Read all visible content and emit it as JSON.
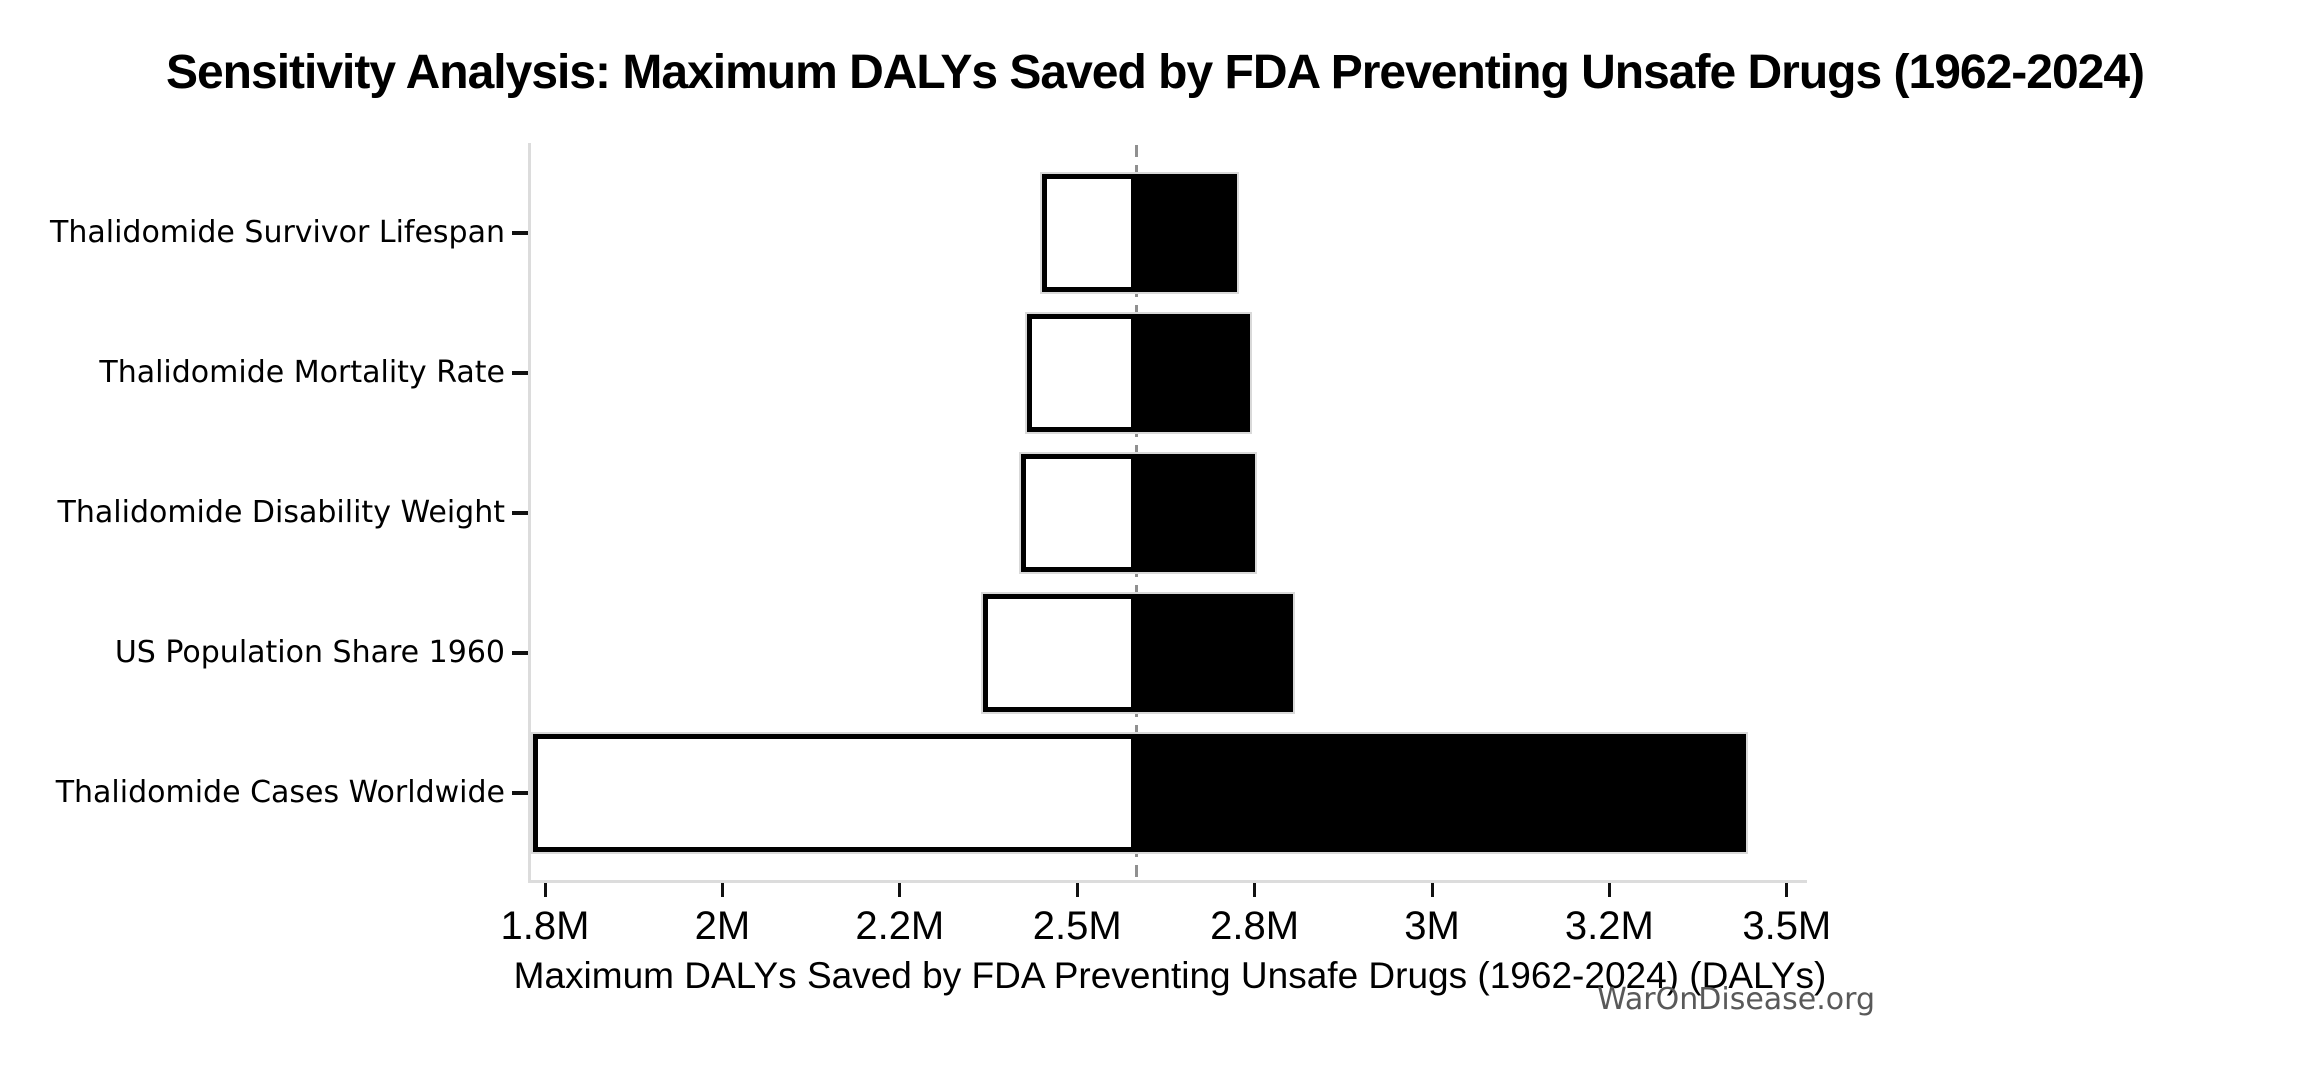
{
  "watermark": "WarOnDisease.org",
  "chart_data": {
    "type": "bar",
    "variant": "tornado-sensitivity",
    "orientation": "horizontal",
    "title": "Sensitivity Analysis: Maximum DALYs Saved by FDA Preventing Unsafe Drugs (1962-2024)",
    "xlabel": "Maximum DALYs Saved by FDA Preventing Unsafe Drugs (1962-2024) (DALYs)",
    "baseline_value": 2600000,
    "x_ticks": [
      {
        "label": "1.8M",
        "value": 1800000
      },
      {
        "label": "2M",
        "value": 2000000
      },
      {
        "label": "2.2M",
        "value": 2200000
      },
      {
        "label": "2.5M",
        "value": 2500000
      },
      {
        "label": "2.8M",
        "value": 2800000
      },
      {
        "label": "3M",
        "value": 3000000
      },
      {
        "label": "3.2M",
        "value": 3200000
      },
      {
        "label": "3.5M",
        "value": 3500000
      }
    ],
    "x_ticks_evenly_spaced": true,
    "grid": false,
    "legend": null,
    "rows": [
      {
        "label": "Thalidomide Survivor Lifespan",
        "low": 2440000,
        "high": 2770000
      },
      {
        "label": "Thalidomide Mortality Rate",
        "low": 2415000,
        "high": 2793000
      },
      {
        "label": "Thalidomide Disability Weight",
        "low": 2405000,
        "high": 2800000
      },
      {
        "label": "US Population Share 1960",
        "low": 2340000,
        "high": 2843000
      },
      {
        "label": "Thalidomide Cases Worldwide",
        "low": 1786000,
        "high": 3431000
      }
    ],
    "colors": {
      "low_bar_fill": "#ffffff",
      "low_bar_edge": "#000000",
      "high_bar_fill": "#000000",
      "bar_outline": "#d9d9d9",
      "baseline_line": "#909090",
      "axis_spine": "#dcdcdc",
      "tick_mark": "#111111",
      "watermark_text": "#595959"
    }
  }
}
